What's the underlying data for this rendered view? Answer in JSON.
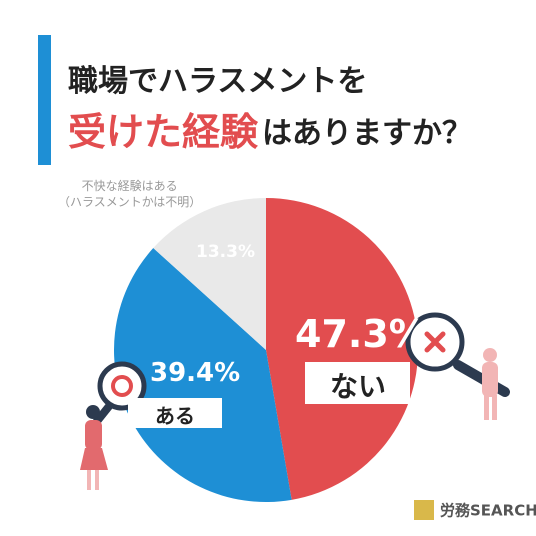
{
  "chart_data": {
    "type": "pie",
    "title": {
      "line1": "職場でハラスメントを",
      "highlight": "受けた経験",
      "rest": "はありますか？"
    },
    "categories": [
      "ない",
      "ある",
      "不快な経験はある\n（ハラスメントかは不明）"
    ],
    "values": [
      47.3,
      39.4,
      13.3
    ],
    "value_labels": [
      "47.3%",
      "39.4%",
      "13.3%"
    ],
    "colors": [
      "#e24d4f",
      "#1e8fd5",
      "#e9e9e9"
    ],
    "brand": "労務SEARCH"
  }
}
